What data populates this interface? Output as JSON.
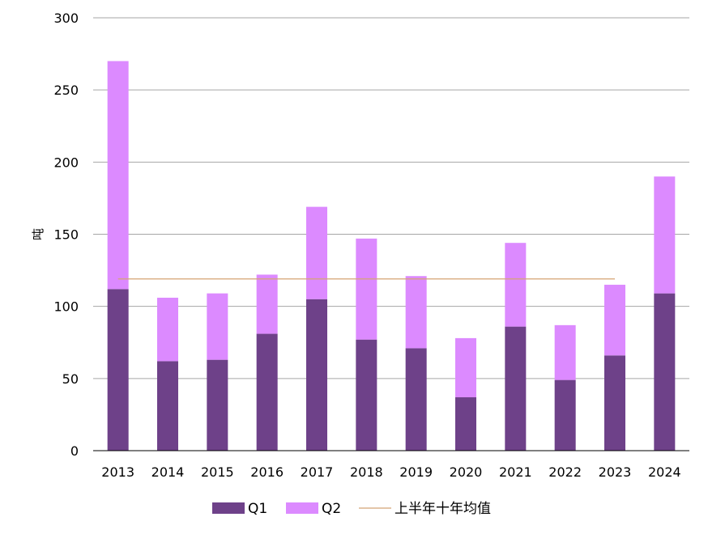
{
  "chart_data": {
    "type": "bar",
    "stacked": true,
    "categories": [
      "2013",
      "2014",
      "2015",
      "2016",
      "2017",
      "2018",
      "2019",
      "2020",
      "2021",
      "2022",
      "2023",
      "2024"
    ],
    "series": [
      {
        "name": "Q1",
        "color": "#6e4189",
        "values": [
          112,
          62,
          63,
          81,
          105,
          77,
          71,
          37,
          86,
          49,
          66,
          109
        ]
      },
      {
        "name": "Q2",
        "color": "#dc8aff",
        "values": [
          158,
          44,
          46,
          41,
          64,
          70,
          50,
          41,
          58,
          38,
          49,
          81
        ]
      }
    ],
    "reference_line": {
      "name": "上半年十年均值",
      "color": "#d4a373",
      "value": 119,
      "from": "2013",
      "to": "2023"
    },
    "xlabel": "",
    "ylabel": "吨",
    "ylim": [
      0,
      300
    ],
    "yticks": [
      0,
      50,
      100,
      150,
      200,
      250,
      300
    ],
    "grid": true,
    "legend_position": "bottom"
  }
}
